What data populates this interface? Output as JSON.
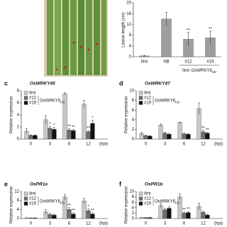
{
  "chart_data": [
    {
      "type": "bar",
      "y_label": "Lesion length (cm)",
      "categories": [
        "Ilmi",
        "NB",
        "#12",
        "#19"
      ],
      "values": [
        0.3,
        14,
        6.5,
        7
      ],
      "errors": [
        0.2,
        2.5,
        2.5,
        2.5
      ],
      "significance": [
        null,
        null,
        "**",
        "**"
      ],
      "color": "#9e9e9e",
      "group_label": {
        "text": "Ilmi::OsWRKY6",
        "subscript": "KD"
      },
      "ylim": [
        0,
        20
      ],
      "yticks": [
        0,
        4,
        8,
        12,
        16,
        20
      ]
    },
    {
      "type": "grouped-bar",
      "panel_label": "c",
      "title": "OsWRKY45",
      "y_label": "Relative expression",
      "categories": [
        "0",
        "3",
        "6",
        "12"
      ],
      "x_unit": "(hpi)",
      "legend_group": {
        "text": "OsWRKY6",
        "subscript": "KD"
      },
      "series": [
        {
          "name": "Ilmi",
          "color": "#c8c8c8",
          "values": [
            1.3,
            3.2,
            7.5,
            5.8
          ],
          "errors": [
            0.4,
            0.7,
            0.2,
            0.6
          ],
          "significance": [
            null,
            null,
            null,
            null
          ]
        },
        {
          "name": "#12",
          "color": "#707070",
          "values": [
            0.6,
            1.8,
            1.5,
            1.2
          ],
          "errors": [
            0.1,
            0.3,
            0.2,
            0.2
          ],
          "significance": [
            null,
            "*",
            "**",
            "**"
          ]
        },
        {
          "name": "#19",
          "color": "#111111",
          "values": [
            0.6,
            1.6,
            1.4,
            2.6
          ],
          "errors": [
            0.1,
            0.3,
            0.2,
            0.5
          ],
          "significance": [
            null,
            "*",
            "**",
            "*"
          ]
        }
      ],
      "ylim": [
        0,
        8
      ],
      "yticks": [
        0,
        2,
        4,
        6,
        8
      ]
    },
    {
      "type": "grouped-bar",
      "panel_label": "d",
      "title": "OsWRKY47",
      "y_label": "Relative expression",
      "categories": [
        "0",
        "3",
        "6",
        "12"
      ],
      "x_unit": "(hpi)",
      "legend_group": {
        "text": "OsWRKY6",
        "subscript": "KD"
      },
      "series": [
        {
          "name": "Ilmi",
          "color": "#c8c8c8",
          "values": [
            1.1,
            2.9,
            3.4,
            6.3
          ],
          "errors": [
            0.3,
            0.2,
            0.1,
            1.2
          ],
          "significance": [
            null,
            null,
            null,
            null
          ]
        },
        {
          "name": "#12",
          "color": "#707070",
          "values": [
            0.7,
            1.2,
            1.1,
            1.5
          ],
          "errors": [
            0.1,
            0.2,
            0.1,
            0.3
          ],
          "significance": [
            null,
            null,
            null,
            "**"
          ]
        },
        {
          "name": "#19",
          "color": "#111111",
          "values": [
            0.6,
            1.0,
            1.0,
            1.2
          ],
          "errors": [
            0.1,
            0.2,
            0.1,
            0.2
          ],
          "significance": [
            null,
            null,
            null,
            "**"
          ]
        }
      ],
      "ylim": [
        0,
        10
      ],
      "yticks": [
        0,
        2,
        4,
        6,
        8,
        10
      ]
    },
    {
      "type": "grouped-bar",
      "panel_label": "e",
      "title": "OsPR1a",
      "y_label": "Relative expression",
      "categories": [
        "0",
        "3",
        "6",
        "12"
      ],
      "x_unit": "(hpi)",
      "legend_group": {
        "text": "OsWRKY6",
        "subscript": "KD"
      },
      "series": [
        {
          "name": "Ilmi",
          "color": "#c8c8c8",
          "values": [
            0.3,
            3,
            9.5,
            7.8
          ],
          "errors": [
            0.1,
            1,
            1.2,
            1.2
          ],
          "significance": [
            null,
            null,
            null,
            null
          ]
        },
        {
          "name": "#12",
          "color": "#707070",
          "values": [
            0.2,
            1.8,
            4,
            3.5
          ],
          "errors": [
            0.1,
            0.5,
            0.8,
            0.8
          ],
          "significance": [
            null,
            null,
            "**",
            "*"
          ]
        },
        {
          "name": "#19",
          "color": "#111111",
          "values": [
            0.2,
            1.5,
            2,
            2
          ],
          "errors": [
            0.1,
            0.4,
            0.5,
            0.5
          ],
          "significance": [
            null,
            null,
            "**",
            "**"
          ]
        }
      ],
      "ylim": [
        0,
        12
      ],
      "yticks": [
        0,
        4,
        8,
        12
      ]
    },
    {
      "type": "grouped-bar",
      "panel_label": "f",
      "title": "OsPR1b",
      "y_label": "Relative expression",
      "categories": [
        "0",
        "3",
        "6",
        "12"
      ],
      "x_unit": "(hpi)",
      "legend_group": {
        "text": "OsWRKY6",
        "subscript": "KD"
      },
      "series": [
        {
          "name": "Ilmi",
          "color": "#c8c8c8",
          "values": [
            0.3,
            4.8,
            8,
            4.5
          ],
          "errors": [
            0.1,
            0.8,
            1.2,
            1.2
          ],
          "significance": [
            null,
            null,
            null,
            null
          ]
        },
        {
          "name": "#12",
          "color": "#707070",
          "values": [
            0.3,
            3.2,
            2,
            2.3
          ],
          "errors": [
            0.1,
            0.6,
            0.4,
            0.5
          ],
          "significance": [
            null,
            null,
            "**",
            null
          ]
        },
        {
          "name": "#19",
          "color": "#111111",
          "values": [
            0.3,
            3.8,
            2.2,
            1.3
          ],
          "errors": [
            0.1,
            0.6,
            0.4,
            0.3
          ],
          "significance": [
            null,
            null,
            "**",
            null
          ]
        }
      ],
      "ylim": [
        0,
        10
      ],
      "yticks": [
        0,
        2,
        4,
        6,
        8,
        10
      ]
    }
  ]
}
